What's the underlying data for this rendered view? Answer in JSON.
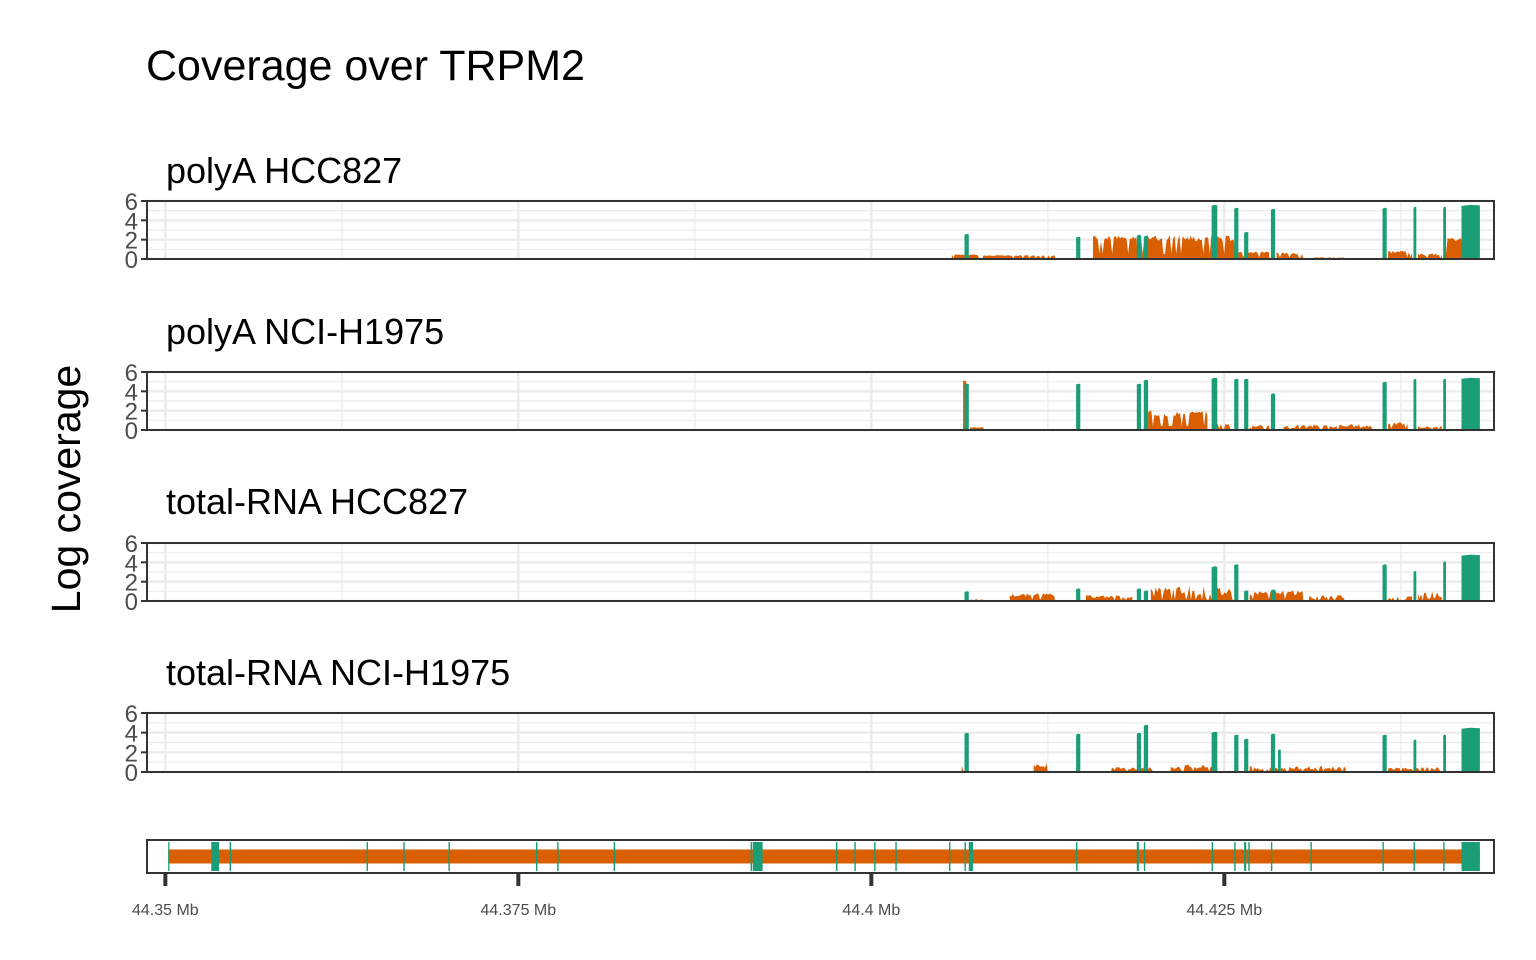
{
  "title": "Coverage over TRPM2",
  "ylabel": "Log coverage",
  "colors": {
    "intron": "#d95f02",
    "exon": "#1b9e77",
    "frame": "#333333",
    "grid": "#ebebeb",
    "tick_text": "#4d4d4d"
  },
  "chart_data": {
    "type": "area",
    "xlim": [
      44.3487,
      44.4441
    ],
    "ylim": [
      0,
      6
    ],
    "y_ticks": [
      0,
      2,
      4,
      6
    ],
    "x_ticks": [
      {
        "value": 44.35,
        "label": "44.35 Mb"
      },
      {
        "value": 44.375,
        "label": "44.375 Mb"
      },
      {
        "value": 44.4,
        "label": "44.4 Mb"
      },
      {
        "value": 44.425,
        "label": "44.425 Mb"
      }
    ],
    "exons": [
      [
        44.35025,
        44.3502
      ],
      [
        44.35325,
        44.3538
      ],
      [
        44.35455,
        44.35465
      ],
      [
        44.36425,
        44.36435
      ],
      [
        44.36685,
        44.36695
      ],
      [
        44.37005,
        44.37015
      ],
      [
        44.37625,
        44.37635
      ],
      [
        44.37775,
        44.37785
      ],
      [
        44.38175,
        44.38185
      ],
      [
        44.39145,
        44.39155
      ],
      [
        44.3916,
        44.3923
      ],
      [
        44.3975,
        44.3976
      ],
      [
        44.3988,
        44.3989
      ],
      [
        44.4002,
        44.4003
      ],
      [
        44.4017,
        44.4018
      ],
      [
        44.4055,
        44.4056
      ],
      [
        44.4066,
        44.4067
      ],
      [
        44.4069,
        44.4072
      ],
      [
        44.4145,
        44.4146
      ],
      [
        44.4188,
        44.41895
      ],
      [
        44.4193,
        44.4194
      ],
      [
        44.4241,
        44.4242
      ],
      [
        44.4257,
        44.4258
      ],
      [
        44.4264,
        44.42655
      ],
      [
        44.4267,
        44.4268
      ],
      [
        44.4283,
        44.4284
      ],
      [
        44.4311,
        44.4312
      ],
      [
        44.4362,
        44.4363
      ],
      [
        44.4384,
        44.4385
      ],
      [
        44.4405,
        44.4406
      ],
      [
        44.4418,
        44.4431
      ]
    ],
    "transcript": {
      "start": 44.3502,
      "end": 44.4431
    },
    "tracks": [
      {
        "name": "polyA HCC827",
        "exon_peaks": [
          [
            44.4066,
            44.4069,
            2.6
          ],
          [
            44.4145,
            44.4148,
            2.3
          ],
          [
            44.4188,
            44.4191,
            2.5
          ],
          [
            44.4193,
            44.4196,
            2.4
          ],
          [
            44.4241,
            44.4245,
            5.6
          ],
          [
            44.4257,
            44.426,
            5.3
          ],
          [
            44.4264,
            44.4267,
            2.8
          ],
          [
            44.4283,
            44.4286,
            5.2
          ],
          [
            44.4362,
            44.4365,
            5.3
          ],
          [
            44.4384,
            44.4386,
            5.4
          ],
          [
            44.4405,
            44.4407,
            5.4
          ],
          [
            44.4418,
            44.4431,
            5.6
          ]
        ],
        "intron_regions": [
          [
            44.4057,
            44.4077,
            0.4,
            0.5
          ],
          [
            44.4079,
            44.413,
            0.3,
            0.4
          ],
          [
            44.4157,
            44.4258,
            1.8,
            2.5
          ],
          [
            44.426,
            44.4282,
            0.6,
            0.8
          ],
          [
            44.4287,
            44.4306,
            0.5,
            0.7
          ],
          [
            44.4312,
            44.4335,
            0.1,
            0.2
          ],
          [
            44.4366,
            44.4383,
            0.6,
            0.9
          ],
          [
            44.4387,
            44.4404,
            0.3,
            0.6
          ],
          [
            44.4407,
            44.442,
            1.8,
            2.2
          ]
        ]
      },
      {
        "name": "polyA NCI-H1975",
        "exon_peaks": [
          [
            44.4066,
            44.4069,
            4.8
          ],
          [
            44.4145,
            44.4148,
            4.8
          ],
          [
            44.4188,
            44.4191,
            4.8
          ],
          [
            44.4193,
            44.4196,
            5.2
          ],
          [
            44.4241,
            44.4245,
            5.4
          ],
          [
            44.4257,
            44.426,
            5.3
          ],
          [
            44.4264,
            44.4267,
            5.3
          ],
          [
            44.4283,
            44.4286,
            3.8
          ],
          [
            44.4362,
            44.4365,
            5.0
          ],
          [
            44.4384,
            44.4386,
            5.3
          ],
          [
            44.4405,
            44.4407,
            5.3
          ],
          [
            44.4418,
            44.4431,
            5.4
          ]
        ],
        "intron_regions": [
          [
            44.4065,
            44.4068,
            5.0,
            5.2
          ],
          [
            44.407,
            44.408,
            0.2,
            0.3
          ],
          [
            44.4196,
            44.4238,
            1.4,
            2.0
          ],
          [
            44.4243,
            44.4255,
            0.4,
            0.7
          ],
          [
            44.4268,
            44.4282,
            0.3,
            0.6
          ],
          [
            44.4292,
            44.4355,
            0.2,
            0.6
          ],
          [
            44.4366,
            44.438,
            0.5,
            0.8
          ],
          [
            44.4387,
            44.4404,
            0.2,
            0.4
          ]
        ]
      },
      {
        "name": "total-RNA HCC827",
        "exon_peaks": [
          [
            44.4066,
            44.4069,
            1.0
          ],
          [
            44.4145,
            44.4148,
            1.3
          ],
          [
            44.4188,
            44.4191,
            1.3
          ],
          [
            44.4193,
            44.4196,
            1.1
          ],
          [
            44.4241,
            44.4245,
            3.6
          ],
          [
            44.4257,
            44.426,
            3.8
          ],
          [
            44.4264,
            44.4267,
            1.1
          ],
          [
            44.4283,
            44.4286,
            1.2
          ],
          [
            44.4362,
            44.4365,
            3.8
          ],
          [
            44.4384,
            44.4386,
            3.1
          ],
          [
            44.4405,
            44.4407,
            4.1
          ],
          [
            44.4418,
            44.4431,
            4.8
          ]
        ],
        "intron_regions": [
          [
            44.407,
            44.408,
            0.1,
            0.2
          ],
          [
            44.4098,
            44.413,
            0.4,
            0.8
          ],
          [
            44.4152,
            44.4185,
            0.3,
            0.6
          ],
          [
            44.4198,
            44.4257,
            0.4,
            1.6
          ],
          [
            44.4268,
            44.4306,
            0.6,
            1.1
          ],
          [
            44.431,
            44.4335,
            0.2,
            0.6
          ],
          [
            44.4366,
            44.4383,
            0.1,
            0.5
          ],
          [
            44.4387,
            44.4404,
            0.2,
            1.0
          ]
        ]
      },
      {
        "name": "total-RNA NCI-H1975",
        "exon_peaks": [
          [
            44.4066,
            44.4069,
            4.0
          ],
          [
            44.4145,
            44.4148,
            3.9
          ],
          [
            44.4188,
            44.4191,
            4.0
          ],
          [
            44.4193,
            44.4196,
            4.8
          ],
          [
            44.4241,
            44.4245,
            4.1
          ],
          [
            44.4257,
            44.426,
            3.8
          ],
          [
            44.4264,
            44.4267,
            3.4
          ],
          [
            44.4283,
            44.4286,
            3.9
          ],
          [
            44.4288,
            44.429,
            2.3
          ],
          [
            44.4362,
            44.4365,
            3.8
          ],
          [
            44.4384,
            44.4386,
            3.3
          ],
          [
            44.4405,
            44.4407,
            3.8
          ],
          [
            44.4418,
            44.4431,
            4.5
          ]
        ],
        "intron_regions": [
          [
            44.4064,
            44.4066,
            0.5,
            1.2
          ],
          [
            44.4115,
            44.4125,
            0.4,
            0.9
          ],
          [
            44.417,
            44.42,
            0.2,
            0.5
          ],
          [
            44.4212,
            44.4245,
            0.3,
            0.8
          ],
          [
            44.4268,
            44.4336,
            0.2,
            0.6
          ],
          [
            44.4366,
            44.4403,
            0.2,
            0.5
          ]
        ]
      }
    ]
  }
}
